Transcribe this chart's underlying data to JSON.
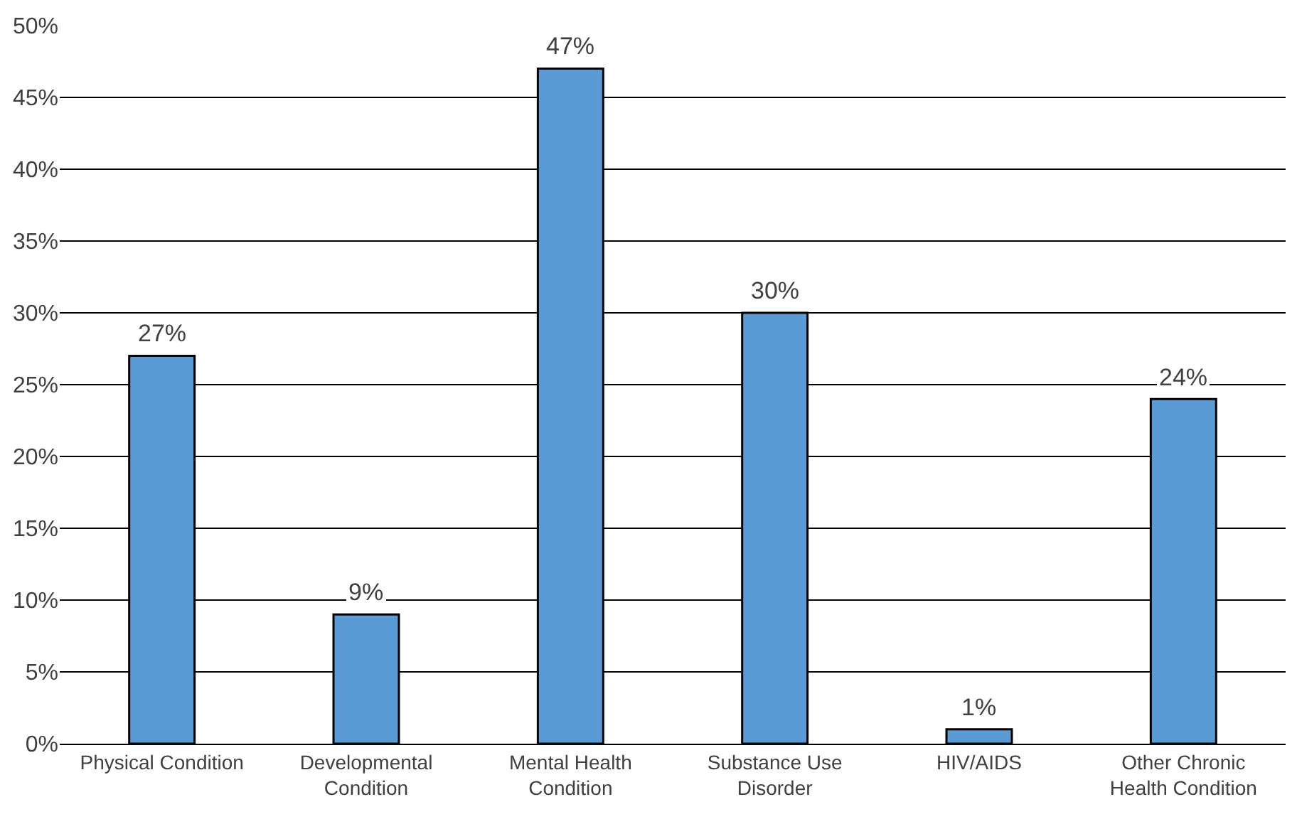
{
  "chart_data": {
    "type": "bar",
    "categories": [
      "Physical Condition",
      "Developmental\nCondition",
      "Mental Health\nCondition",
      "Substance Use\nDisorder",
      "HIV/AIDS",
      "Other Chronic\nHealth Condition"
    ],
    "values": [
      27,
      9,
      47,
      30,
      1,
      24
    ],
    "value_labels": [
      "27%",
      "9%",
      "47%",
      "30%",
      "1%",
      "24%"
    ],
    "color": "#5b9bd5",
    "ylim": [
      0,
      50
    ],
    "yticks": [
      {
        "value": 0,
        "label": "0%"
      },
      {
        "value": 5,
        "label": "5%"
      },
      {
        "value": 10,
        "label": "10%"
      },
      {
        "value": 15,
        "label": "15%"
      },
      {
        "value": 20,
        "label": "20%"
      },
      {
        "value": 25,
        "label": "25%"
      },
      {
        "value": 30,
        "label": "30%"
      },
      {
        "value": 35,
        "label": "35%"
      },
      {
        "value": 40,
        "label": "40%"
      },
      {
        "value": 45,
        "label": "45%"
      },
      {
        "value": 50,
        "label": "50%"
      }
    ],
    "grid": "y"
  }
}
